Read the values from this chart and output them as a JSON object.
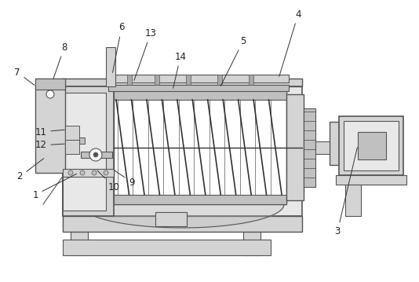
{
  "bg": "#ffffff",
  "lc": "#555555",
  "lc2": "#333333",
  "gray1": "#e8e8e8",
  "gray2": "#d4d4d4",
  "gray3": "#c0c0c0",
  "gray4": "#a8a8a8",
  "white": "#ffffff",
  "figsize": [
    5.34,
    3.59
  ],
  "dpi": 100
}
